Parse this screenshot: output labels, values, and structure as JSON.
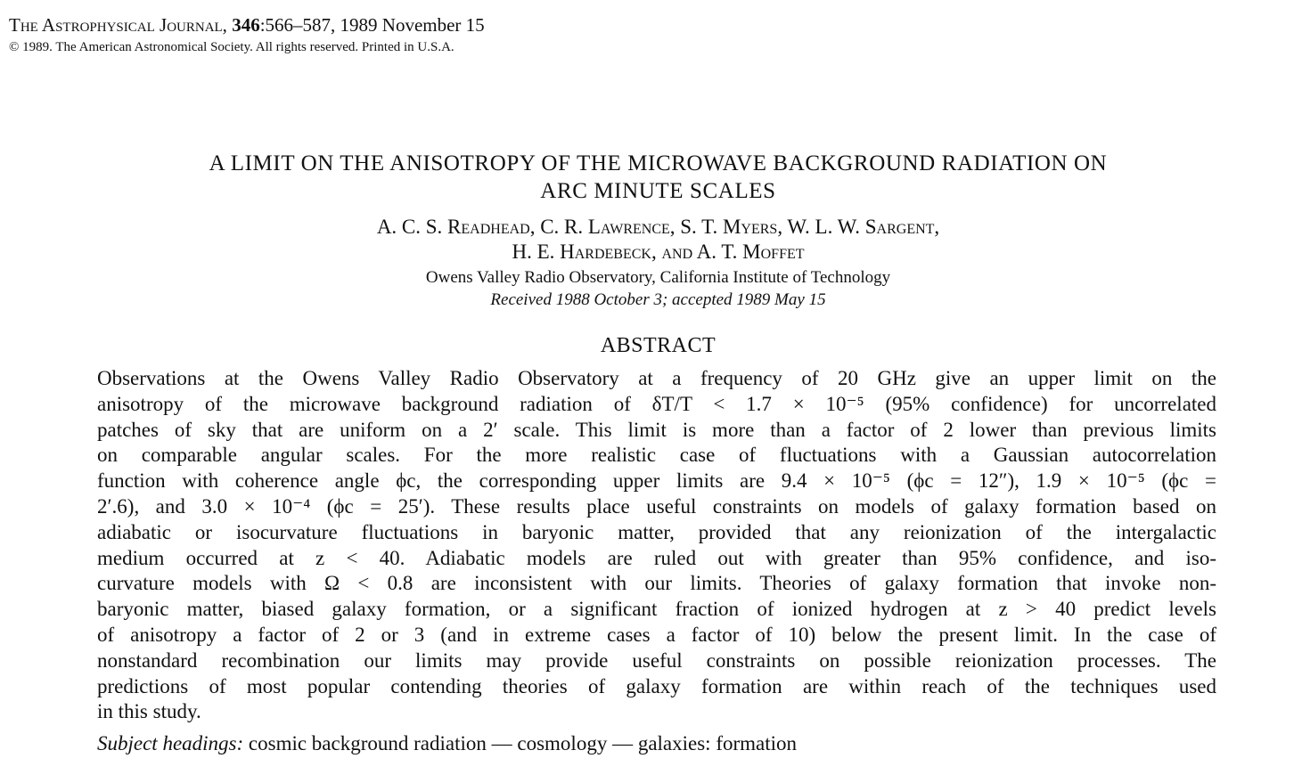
{
  "header": {
    "journal_name": "The Astrophysical Journal,",
    "volume": "346",
    "pages_date": ":566–587, 1989 November 15",
    "copyright": "© 1989. The American Astronomical Society. All rights reserved. Printed in U.S.A."
  },
  "title_lines": [
    "A LIMIT ON THE ANISOTROPY OF THE MICROWAVE BACKGROUND RADIATION ON",
    "ARC MINUTE SCALES"
  ],
  "authors_lines": [
    "A. C. S. Readhead, C. R. Lawrence, S. T. Myers, W. L. W. Sargent,",
    "H. E. Hardebeck, and A. T. Moffet"
  ],
  "affiliation": "Owens Valley Radio Observatory, California Institute of Technology",
  "received": "Received 1988 October 3; accepted 1989 May 15",
  "abstract_heading": "ABSTRACT",
  "abstract_lines": [
    "Observations at the Owens Valley Radio Observatory at a frequency of 20 GHz give an upper limit on the",
    "anisotropy of the microwave background radiation of δT/T < 1.7 × 10⁻⁵ (95% confidence) for uncorrelated",
    "patches of sky that are uniform on a 2′ scale. This limit is more than a factor of 2 lower than previous limits",
    "on comparable angular scales. For the more realistic case of fluctuations with a Gaussian autocorrelation",
    "function with coherence angle ϕc, the corresponding upper limits are 9.4 × 10⁻⁵ (ϕc = 12″), 1.9 × 10⁻⁵ (ϕc =",
    "2′.6), and 3.0 × 10⁻⁴ (ϕc = 25′). These results place useful constraints on models of galaxy formation based on",
    "adiabatic or isocurvature fluctuations in baryonic matter, provided that any reionization of the intergalactic",
    "medium occurred at z < 40. Adiabatic models are ruled out with greater than 95% confidence, and iso-",
    "curvature models with Ω < 0.8 are inconsistent with our limits. Theories of galaxy formation that invoke non-",
    "baryonic matter, biased galaxy formation, or a significant fraction of ionized hydrogen at z > 40 predict levels",
    "of anisotropy a factor of 2 or 3 (and in extreme cases a factor of 10) below the present limit. In the case of",
    "nonstandard recombination our limits may provide useful constraints on possible reionization processes. The",
    "predictions of most popular contending theories of galaxy formation are within reach of the techniques used",
    "in this study."
  ],
  "subject_label": "Subject headings:",
  "subject_terms": "cosmic background radiation — cosmology — galaxies: formation"
}
